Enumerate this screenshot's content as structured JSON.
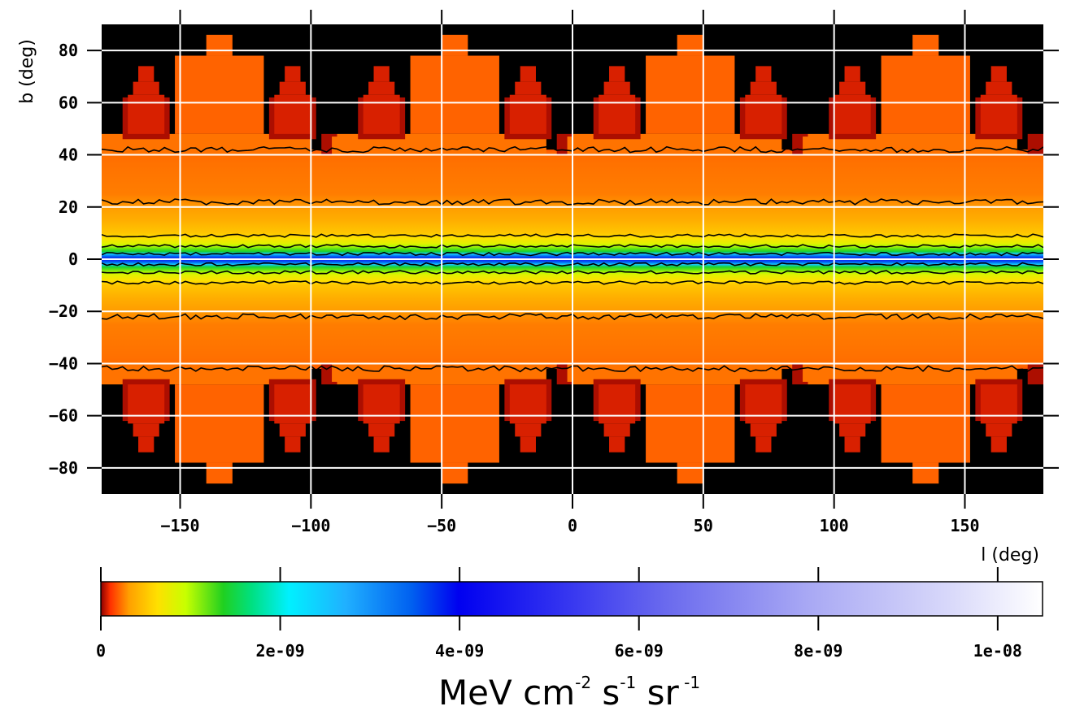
{
  "chart_data": {
    "type": "heatmap",
    "title": "",
    "xlabel": "l (deg)",
    "ylabel": "b (deg)",
    "xlim": [
      -180,
      180
    ],
    "ylim": [
      -90,
      90
    ],
    "x_ticks": [
      -150,
      -100,
      -50,
      0,
      50,
      100,
      150
    ],
    "y_ticks": [
      80,
      60,
      40,
      20,
      0,
      -20,
      -40,
      -60,
      -80
    ],
    "x_tick_labels": [
      "−150",
      "−100",
      "−50",
      "0",
      "50",
      "100",
      "150"
    ],
    "y_tick_labels": [
      "80",
      "60",
      "40",
      "20",
      "0",
      "−20",
      "−40",
      "−60",
      "−80"
    ],
    "grid": true,
    "symmetry": "mirror in b = 0; pattern repeats every 90 deg in l",
    "colorbar": {
      "range": [
        0,
        1.05e-08
      ],
      "ticks": [
        0,
        2e-09,
        4e-09,
        6e-09,
        8e-09,
        1e-08
      ],
      "tick_labels": [
        "0",
        "2e-09",
        "4e-09",
        "6e-09",
        "8e-09",
        "1e-08"
      ],
      "unit_base": "MeV cm",
      "unit_exp1": "-2",
      "unit_s": " s",
      "unit_exp2": "-1",
      "unit_sr": " sr",
      "unit_exp3": " -1",
      "colormap": [
        {
          "stop": 0.0,
          "color": "#8b0000"
        },
        {
          "stop": 0.01,
          "color": "#ff3000"
        },
        {
          "stop": 0.03,
          "color": "#ffa000"
        },
        {
          "stop": 0.06,
          "color": "#ffe000"
        },
        {
          "stop": 0.09,
          "color": "#c8ff00"
        },
        {
          "stop": 0.13,
          "color": "#20d020"
        },
        {
          "stop": 0.16,
          "color": "#00e080"
        },
        {
          "stop": 0.2,
          "color": "#00f0ff"
        },
        {
          "stop": 0.26,
          "color": "#20b0ff"
        },
        {
          "stop": 0.33,
          "color": "#0060f0"
        },
        {
          "stop": 0.38,
          "color": "#0000f0"
        },
        {
          "stop": 0.5,
          "color": "#3838f0"
        },
        {
          "stop": 0.6,
          "color": "#6a6aee"
        },
        {
          "stop": 0.75,
          "color": "#a8a8f4"
        },
        {
          "stop": 0.9,
          "color": "#d8d8fa"
        },
        {
          "stop": 1.0,
          "color": "#ffffff"
        }
      ]
    },
    "latitude_profile": [
      {
        "abs_b_deg": 0,
        "value": 4.5e-09
      },
      {
        "abs_b_deg": 2,
        "value": 2.5e-09
      },
      {
        "abs_b_deg": 3,
        "value": 1.4e-09
      },
      {
        "abs_b_deg": 6,
        "value": 8e-10
      },
      {
        "abs_b_deg": 10,
        "value": 5e-10
      },
      {
        "abs_b_deg": 15,
        "value": 3.8e-10
      },
      {
        "abs_b_deg": 20,
        "value": 3e-10
      },
      {
        "abs_b_deg": 25,
        "value": 2.5e-10
      },
      {
        "abs_b_deg": 40,
        "value": 2.2e-10
      },
      {
        "abs_b_deg": 47,
        "value": 8e-11
      },
      {
        "abs_b_deg": 63,
        "value": 5e-11
      },
      {
        "abs_b_deg": 80,
        "value": 3e-11
      },
      {
        "abs_b_deg": 90,
        "value": 0
      }
    ],
    "contour_levels_b_deg": [
      2,
      5,
      9,
      22,
      42
    ]
  }
}
